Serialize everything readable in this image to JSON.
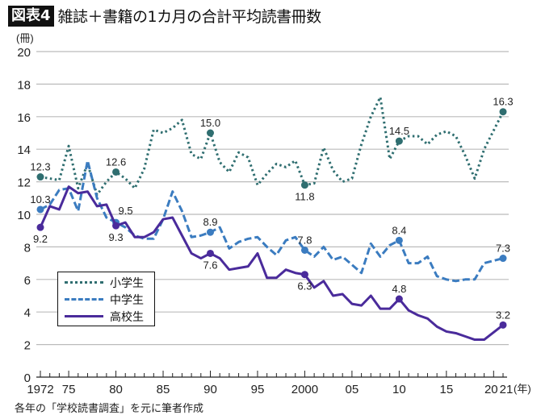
{
  "header": {
    "badge": "図表4",
    "title": "雑誌＋書籍の1カ月の合計平均読書冊数"
  },
  "caption": "各年の「学校読書調査」を元に筆者作成",
  "chart_data": {
    "type": "line",
    "title": "雑誌＋書籍の1カ月の合計平均読書冊数",
    "ylabel": "(冊)",
    "xunit": "(年)",
    "ylim": [
      0,
      20
    ],
    "yticks": [
      0,
      2,
      4,
      6,
      8,
      10,
      12,
      14,
      16,
      18,
      20
    ],
    "xlim": [
      1972,
      2021
    ],
    "xtick_labels": [
      {
        "year": 1972,
        "label": "1972"
      },
      {
        "year": 1975,
        "label": "75"
      },
      {
        "year": 1980,
        "label": "80"
      },
      {
        "year": 1985,
        "label": "85"
      },
      {
        "year": 1990,
        "label": "90"
      },
      {
        "year": 1995,
        "label": "95"
      },
      {
        "year": 2000,
        "label": "2000"
      },
      {
        "year": 2005,
        "label": "05"
      },
      {
        "year": 2010,
        "label": "10"
      },
      {
        "year": 2015,
        "label": "15"
      },
      {
        "year": 2020,
        "label": "20"
      },
      {
        "year": 2021,
        "label": "21"
      }
    ],
    "grid": true,
    "legend_placement": "bottom-left",
    "x": [
      1972,
      1973,
      1974,
      1975,
      1976,
      1977,
      1978,
      1979,
      1980,
      1981,
      1982,
      1983,
      1984,
      1985,
      1986,
      1987,
      1988,
      1989,
      1990,
      1991,
      1992,
      1993,
      1994,
      1995,
      1996,
      1997,
      1998,
      1999,
      2000,
      2001,
      2002,
      2003,
      2004,
      2005,
      2006,
      2007,
      2008,
      2009,
      2010,
      2011,
      2012,
      2013,
      2014,
      2015,
      2016,
      2017,
      2018,
      2019,
      2021
    ],
    "series": [
      {
        "name": "小学生",
        "style": "dotted",
        "color": "#2f6e70",
        "values": [
          12.3,
          12.2,
          12.1,
          14.2,
          11.6,
          13.1,
          11.2,
          12.0,
          12.6,
          12.2,
          11.6,
          12.8,
          15.2,
          15.0,
          15.3,
          15.8,
          13.7,
          13.4,
          15.0,
          13.2,
          12.6,
          13.8,
          13.5,
          11.8,
          12.5,
          13.1,
          12.9,
          13.3,
          11.8,
          11.9,
          14.1,
          12.7,
          12.0,
          12.2,
          14.3,
          16.0,
          17.2,
          13.4,
          14.5,
          14.8,
          14.8,
          14.3,
          14.9,
          15.1,
          14.8,
          13.6,
          12.2,
          14.0,
          16.3
        ],
        "labels": [
          {
            "year": 1972,
            "text": "12.3",
            "pos": "above"
          },
          {
            "year": 1980,
            "text": "12.6",
            "pos": "above"
          },
          {
            "year": 1990,
            "text": "15.0",
            "pos": "above"
          },
          {
            "year": 2000,
            "text": "11.8",
            "pos": "below"
          },
          {
            "year": 2010,
            "text": "14.5",
            "pos": "above"
          },
          {
            "year": 2021,
            "text": "16.3",
            "pos": "above"
          }
        ]
      },
      {
        "name": "中学生",
        "style": "dashed",
        "color": "#3b7cc0",
        "values": [
          10.3,
          10.6,
          11.5,
          11.6,
          10.2,
          13.3,
          11.0,
          9.8,
          9.5,
          9.2,
          8.7,
          8.5,
          8.5,
          9.7,
          11.4,
          10.2,
          8.6,
          8.7,
          8.9,
          9.2,
          7.9,
          8.3,
          8.5,
          8.6,
          8.0,
          7.5,
          8.4,
          8.6,
          7.8,
          7.4,
          8.0,
          7.2,
          7.4,
          6.9,
          6.4,
          8.2,
          7.4,
          8.1,
          8.4,
          7.0,
          7.0,
          7.4,
          6.2,
          6.0,
          5.9,
          6.0,
          6.0,
          7.0,
          7.3
        ],
        "labels": [
          {
            "year": 1972,
            "text": "10.3",
            "pos": "above"
          },
          {
            "year": 1980,
            "text": "9.5",
            "pos": "above-right"
          },
          {
            "year": 1990,
            "text": "8.9",
            "pos": "above"
          },
          {
            "year": 2000,
            "text": "7.8",
            "pos": "above"
          },
          {
            "year": 2010,
            "text": "8.4",
            "pos": "above"
          },
          {
            "year": 2021,
            "text": "7.3",
            "pos": "above"
          }
        ]
      },
      {
        "name": "高校生",
        "style": "solid",
        "color": "#4a2b9b",
        "values": [
          9.2,
          10.5,
          10.3,
          11.7,
          11.3,
          11.4,
          10.5,
          10.6,
          9.3,
          9.5,
          8.6,
          8.6,
          8.9,
          9.7,
          9.8,
          8.7,
          7.6,
          7.3,
          7.6,
          7.3,
          6.6,
          6.7,
          6.8,
          7.6,
          6.1,
          6.1,
          6.6,
          6.4,
          6.3,
          5.5,
          5.9,
          5.0,
          5.1,
          4.5,
          4.4,
          5.0,
          4.2,
          4.2,
          4.8,
          4.1,
          3.8,
          3.6,
          3.1,
          2.8,
          2.7,
          2.5,
          2.3,
          2.3,
          3.2
        ],
        "labels": [
          {
            "year": 1972,
            "text": "9.2",
            "pos": "below"
          },
          {
            "year": 1980,
            "text": "9.3",
            "pos": "below"
          },
          {
            "year": 1990,
            "text": "7.6",
            "pos": "below"
          },
          {
            "year": 2000,
            "text": "6.3",
            "pos": "below"
          },
          {
            "year": 2010,
            "text": "4.8",
            "pos": "above"
          },
          {
            "year": 2021,
            "text": "3.2",
            "pos": "above"
          }
        ]
      }
    ]
  }
}
